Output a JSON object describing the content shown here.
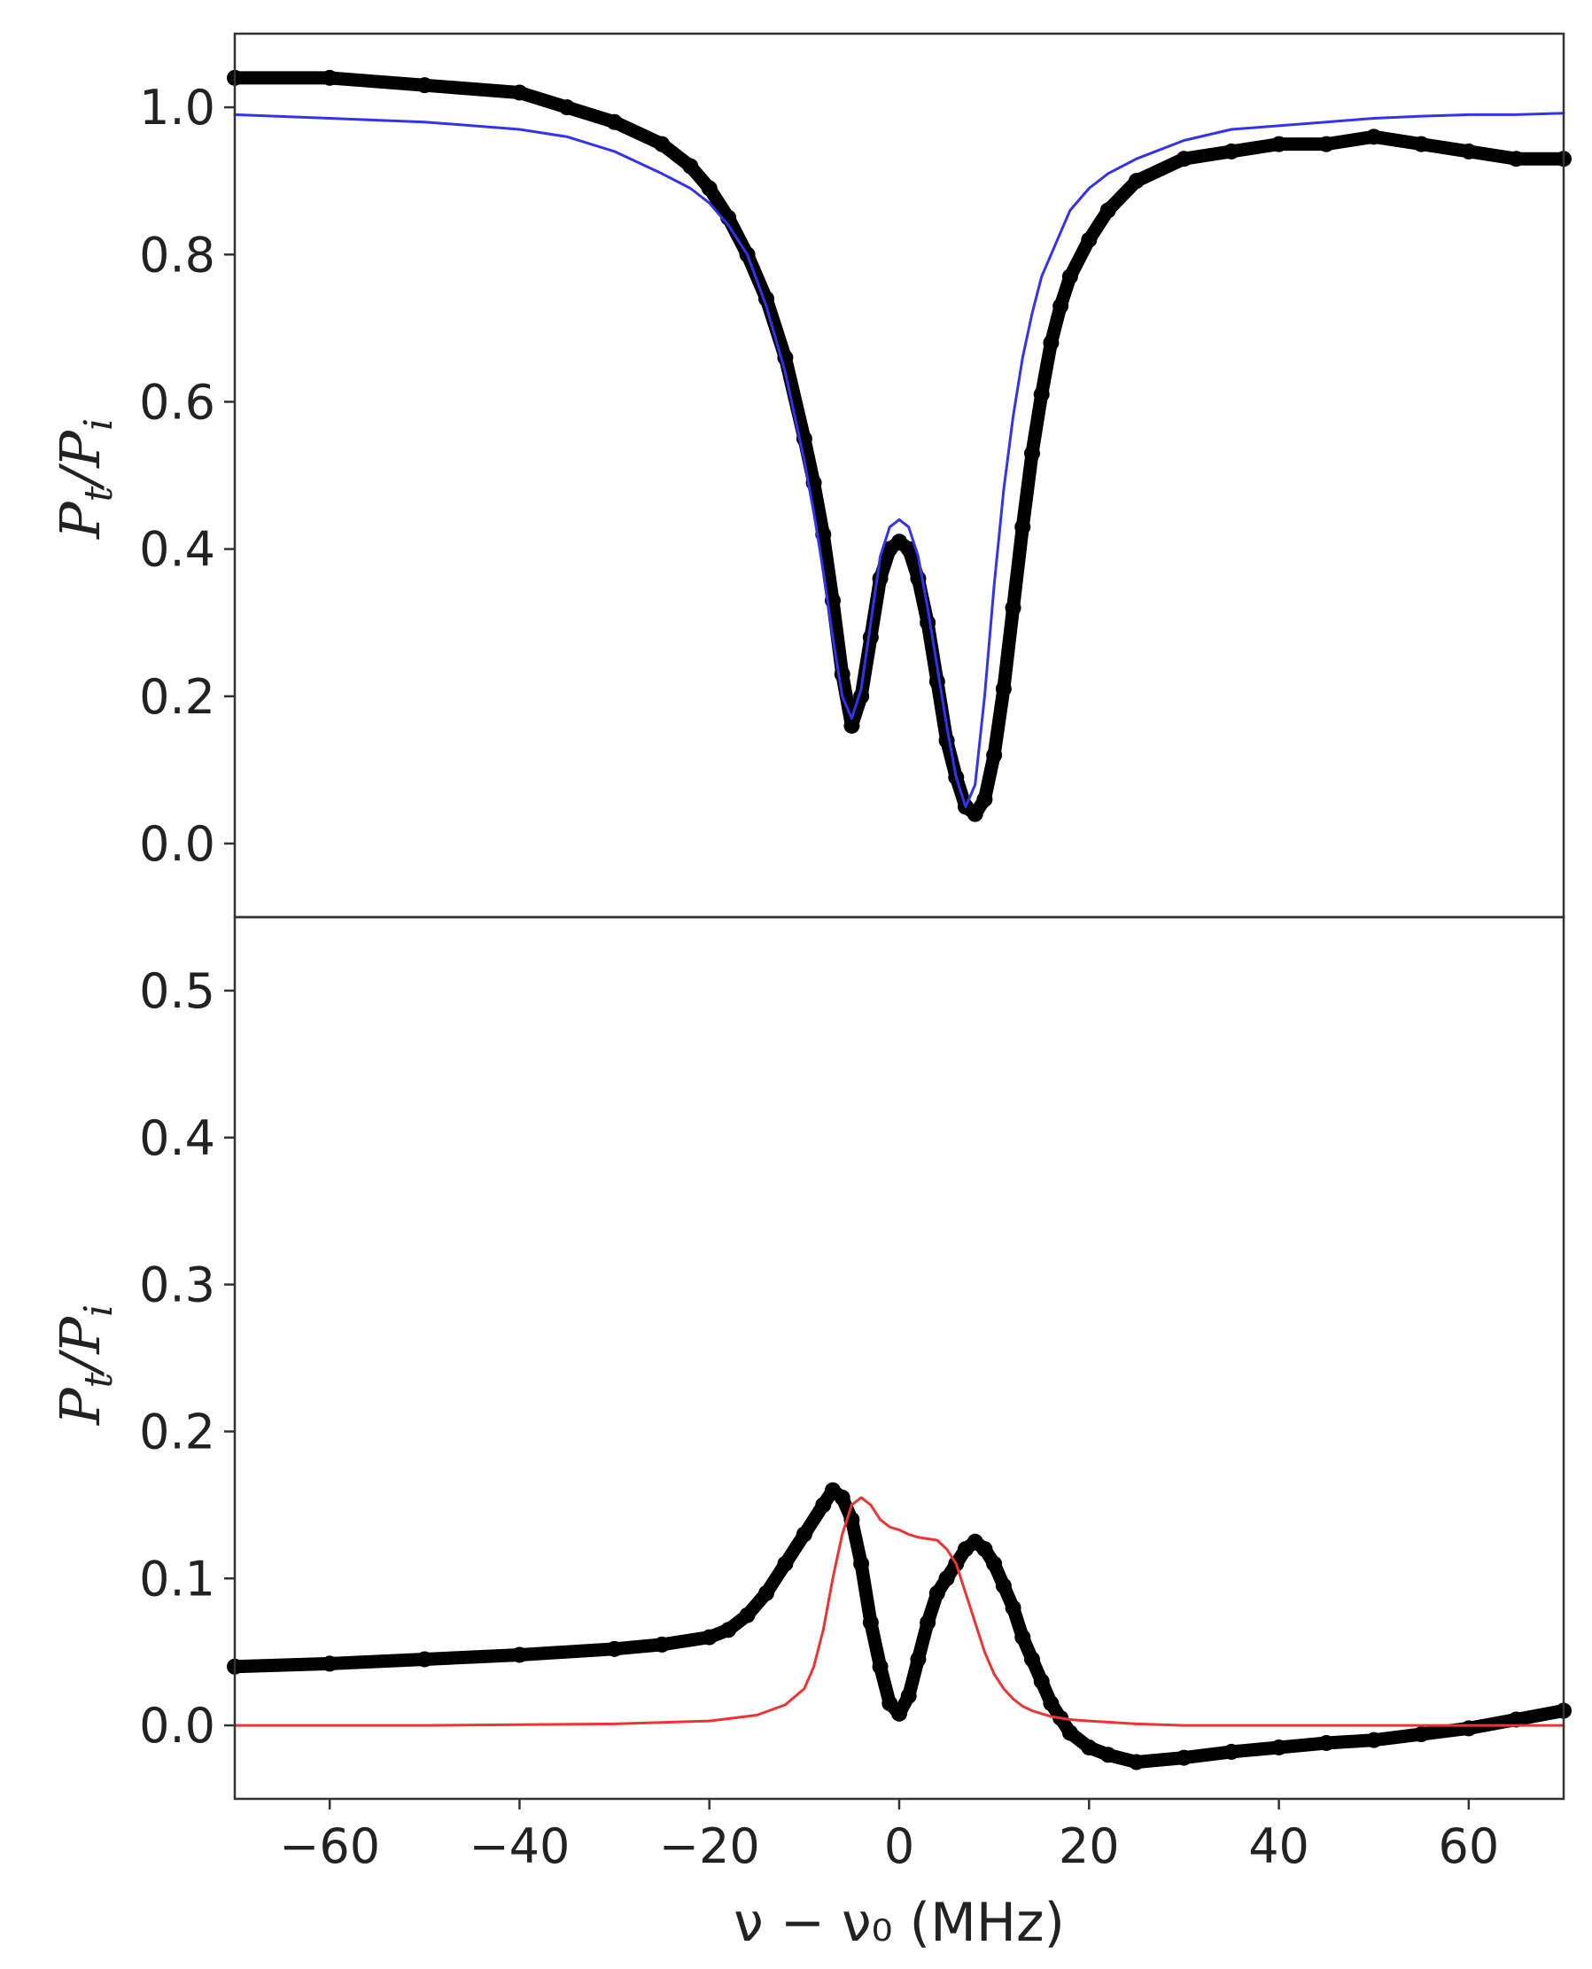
{
  "chart_data": [
    {
      "type": "line",
      "panel": "top",
      "ylabel": {
        "base1": "P",
        "sub1": "t",
        "slash": "/",
        "base2": "P",
        "sub2": "i"
      },
      "xlim": [
        -70,
        70
      ],
      "ylim": [
        -0.1,
        1.1
      ],
      "yticks": [
        "0.0",
        "0.2",
        "0.4",
        "0.6",
        "0.8",
        "1.0"
      ],
      "series": [
        {
          "style": "thick-markers",
          "color": "#000000",
          "x": [
            -70,
            -60,
            -50,
            -40,
            -35,
            -30,
            -25,
            -22,
            -20,
            -18,
            -16,
            -14,
            -12,
            -10,
            -9,
            -8,
            -7,
            -6,
            -5,
            -4,
            -3,
            -2,
            -1,
            0,
            1,
            2,
            3,
            4,
            5,
            6,
            7,
            8,
            9,
            10,
            11,
            12,
            13,
            14,
            15,
            16,
            17,
            18,
            20,
            22,
            25,
            30,
            35,
            40,
            45,
            50,
            55,
            60,
            65,
            70
          ],
          "y": [
            1.04,
            1.04,
            1.03,
            1.02,
            1.0,
            0.98,
            0.95,
            0.92,
            0.89,
            0.85,
            0.8,
            0.74,
            0.66,
            0.55,
            0.49,
            0.42,
            0.33,
            0.23,
            0.16,
            0.2,
            0.28,
            0.36,
            0.4,
            0.41,
            0.4,
            0.36,
            0.3,
            0.22,
            0.14,
            0.09,
            0.05,
            0.04,
            0.06,
            0.12,
            0.21,
            0.32,
            0.43,
            0.53,
            0.61,
            0.68,
            0.73,
            0.77,
            0.82,
            0.86,
            0.9,
            0.93,
            0.94,
            0.95,
            0.95,
            0.96,
            0.95,
            0.94,
            0.93,
            0.93
          ]
        },
        {
          "style": "thin-line",
          "color": "#3333ee",
          "x": [
            -70,
            -60,
            -50,
            -40,
            -35,
            -30,
            -25,
            -22,
            -20,
            -18,
            -16,
            -14,
            -12,
            -10,
            -9,
            -8,
            -7,
            -6,
            -5,
            -4,
            -3,
            -2,
            -1,
            0,
            1,
            2,
            3,
            4,
            5,
            6,
            7,
            8,
            9,
            10,
            11,
            12,
            13,
            14,
            15,
            16,
            17,
            18,
            20,
            22,
            25,
            30,
            35,
            40,
            45,
            50,
            55,
            60,
            65,
            70
          ],
          "y": [
            0.99,
            0.985,
            0.98,
            0.97,
            0.96,
            0.94,
            0.91,
            0.89,
            0.87,
            0.84,
            0.8,
            0.73,
            0.64,
            0.52,
            0.45,
            0.37,
            0.28,
            0.2,
            0.17,
            0.21,
            0.3,
            0.39,
            0.43,
            0.44,
            0.43,
            0.39,
            0.32,
            0.24,
            0.16,
            0.09,
            0.05,
            0.08,
            0.2,
            0.35,
            0.48,
            0.58,
            0.66,
            0.72,
            0.77,
            0.8,
            0.83,
            0.86,
            0.89,
            0.91,
            0.93,
            0.955,
            0.97,
            0.975,
            0.98,
            0.985,
            0.988,
            0.99,
            0.99,
            0.992
          ]
        }
      ]
    },
    {
      "type": "line",
      "panel": "bottom",
      "xlabel": "ν − ν₀ (MHz)",
      "ylabel": {
        "base1": "P",
        "sub1": "t",
        "slash": "/",
        "base2": "P",
        "sub2": "i"
      },
      "xlim": [
        -70,
        70
      ],
      "ylim": [
        -0.05,
        0.55
      ],
      "xticks": [
        "−60",
        "−40",
        "−20",
        "0",
        "20",
        "40",
        "60"
      ],
      "yticks": [
        "0.0",
        "0.1",
        "0.2",
        "0.3",
        "0.4",
        "0.5"
      ],
      "series": [
        {
          "style": "thick-markers",
          "color": "#000000",
          "x": [
            -70,
            -60,
            -50,
            -40,
            -30,
            -25,
            -20,
            -18,
            -16,
            -14,
            -12,
            -10,
            -8,
            -7,
            -6,
            -5,
            -4,
            -3,
            -2,
            -1,
            0,
            1,
            2,
            3,
            4,
            5,
            6,
            7,
            8,
            9,
            10,
            11,
            12,
            13,
            14,
            15,
            16,
            17,
            18,
            20,
            22,
            25,
            30,
            35,
            40,
            45,
            50,
            55,
            60,
            65,
            70
          ],
          "y": [
            0.04,
            0.042,
            0.045,
            0.048,
            0.052,
            0.055,
            0.06,
            0.065,
            0.075,
            0.09,
            0.11,
            0.13,
            0.15,
            0.16,
            0.155,
            0.14,
            0.11,
            0.07,
            0.04,
            0.015,
            0.008,
            0.02,
            0.045,
            0.07,
            0.09,
            0.1,
            0.11,
            0.12,
            0.125,
            0.12,
            0.11,
            0.095,
            0.08,
            0.06,
            0.045,
            0.03,
            0.015,
            0.005,
            -0.005,
            -0.015,
            -0.02,
            -0.025,
            -0.022,
            -0.018,
            -0.015,
            -0.012,
            -0.01,
            -0.006,
            -0.002,
            0.004,
            0.01
          ]
        },
        {
          "style": "thin-line",
          "color": "#ee3333",
          "x": [
            -70,
            -50,
            -30,
            -20,
            -15,
            -12,
            -10,
            -9,
            -8,
            -7,
            -6,
            -5,
            -4,
            -3,
            -2,
            -1,
            0,
            1,
            2,
            3,
            4,
            5,
            6,
            7,
            8,
            9,
            10,
            11,
            12,
            13,
            14,
            15,
            16,
            18,
            20,
            25,
            30,
            40,
            50,
            60,
            70
          ],
          "y": [
            0.0,
            0.0,
            0.001,
            0.003,
            0.007,
            0.014,
            0.025,
            0.04,
            0.065,
            0.1,
            0.13,
            0.15,
            0.155,
            0.15,
            0.14,
            0.135,
            0.133,
            0.13,
            0.128,
            0.127,
            0.126,
            0.12,
            0.11,
            0.09,
            0.07,
            0.05,
            0.035,
            0.025,
            0.018,
            0.013,
            0.01,
            0.008,
            0.006,
            0.004,
            0.003,
            0.001,
            0.0,
            0.0,
            0.0,
            0.0,
            0.0
          ]
        }
      ]
    }
  ]
}
